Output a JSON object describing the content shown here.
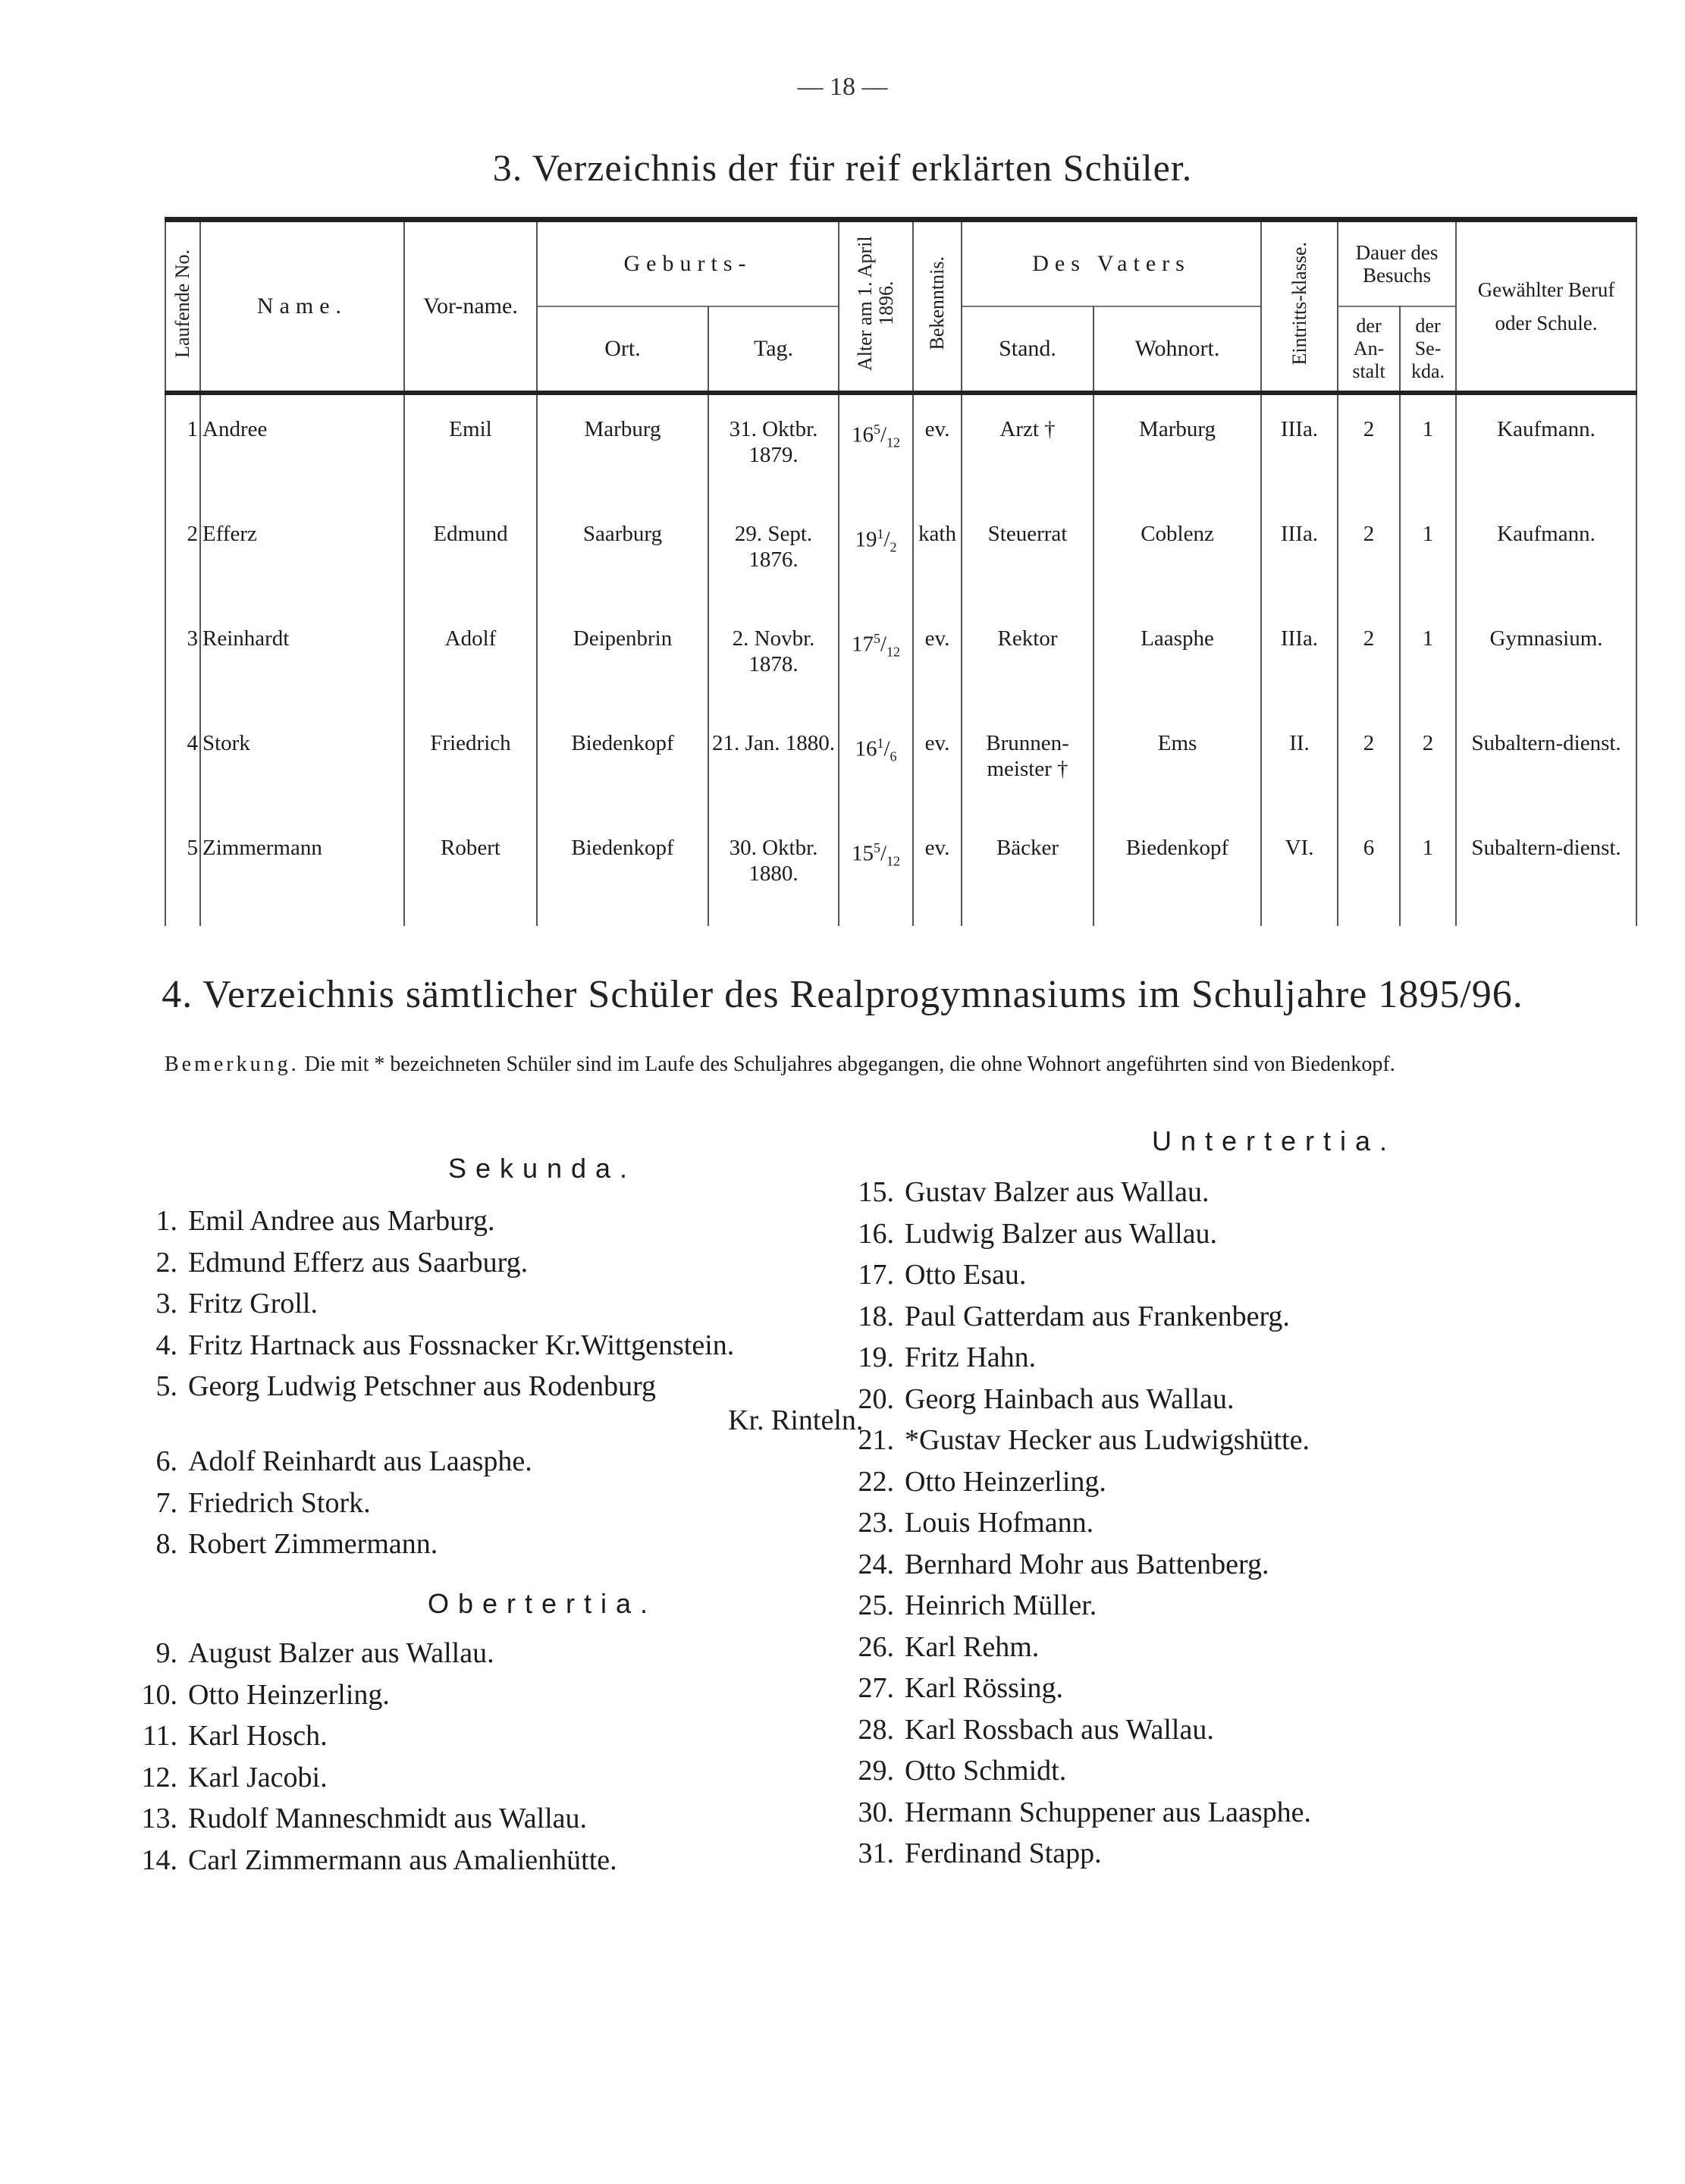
{
  "page_number": "— 18 —",
  "section3": {
    "title": "3. Verzeichnis der für reif erklärten Schüler.",
    "headers": {
      "laufende_no": "Laufende No.",
      "name": "Name.",
      "vorname": "Vor-name.",
      "geburts": "Geburts-",
      "ort": "Ort.",
      "tag": "Tag.",
      "alter": "Alter am 1. April 1896.",
      "bekenntnis": "Bekenntnis.",
      "des_vaters": "Des Vaters",
      "stand": "Stand.",
      "wohnort": "Wohnort.",
      "eintrittsklasse": "Eintritts-klasse.",
      "dauer": "Dauer des Besuchs",
      "der_anstalt": "der An-stalt",
      "der_sekunda": "der Se-kda.",
      "beruf": "Gewählter Beruf oder Schule."
    },
    "rows": [
      {
        "no": "1",
        "name": "Andree",
        "vorname": "Emil",
        "ort": "Marburg",
        "tag": "31. Oktbr. 1879.",
        "alter_whole": "16",
        "alter_num": "5",
        "alter_den": "12",
        "bek": "ev.",
        "stand": "Arzt †",
        "wohnort": "Marburg",
        "klasse": "IIIa.",
        "anstalt": "2",
        "sekunda": "1",
        "beruf": "Kaufmann."
      },
      {
        "no": "2",
        "name": "Efferz",
        "vorname": "Edmund",
        "ort": "Saarburg",
        "tag": "29. Sept. 1876.",
        "alter_whole": "19",
        "alter_num": "1",
        "alter_den": "2",
        "bek": "kath",
        "stand": "Steuerrat",
        "wohnort": "Coblenz",
        "klasse": "IIIa.",
        "anstalt": "2",
        "sekunda": "1",
        "beruf": "Kaufmann."
      },
      {
        "no": "3",
        "name": "Reinhardt",
        "vorname": "Adolf",
        "ort": "Deipenbrin",
        "tag": "2. Novbr. 1878.",
        "alter_whole": "17",
        "alter_num": "5",
        "alter_den": "12",
        "bek": "ev.",
        "stand": "Rektor",
        "wohnort": "Laasphe",
        "klasse": "IIIa.",
        "anstalt": "2",
        "sekunda": "1",
        "beruf": "Gymnasium."
      },
      {
        "no": "4",
        "name": "Stork",
        "vorname": "Friedrich",
        "ort": "Biedenkopf",
        "tag": "21. Jan. 1880.",
        "alter_whole": "16",
        "alter_num": "1",
        "alter_den": "6",
        "bek": "ev.",
        "stand": "Brunnen-meister †",
        "wohnort": "Ems",
        "klasse": "II.",
        "anstalt": "2",
        "sekunda": "2",
        "beruf": "Subaltern-dienst."
      },
      {
        "no": "5",
        "name": "Zimmermann",
        "vorname": "Robert",
        "ort": "Biedenkopf",
        "tag": "30. Oktbr. 1880.",
        "alter_whole": "15",
        "alter_num": "5",
        "alter_den": "12",
        "bek": "ev.",
        "stand": "Bäcker",
        "wohnort": "Biedenkopf",
        "klasse": "VI.",
        "anstalt": "6",
        "sekunda": "1",
        "beruf": "Subaltern-dienst."
      }
    ]
  },
  "section4": {
    "title": "4. Verzeichnis sämtlicher Schüler des Realprogymnasiums im Schuljahre 1895/96.",
    "bemerkung_lead": "Bemerkung.",
    "bemerkung_text": "Die mit * bezeichneten Schüler sind im Laufe des Schuljahres abgegangen, die ohne Wohnort angeführten sind von Biedenkopf.",
    "sekunda": {
      "heading": "Sekunda.",
      "items": [
        {
          "n": "1.",
          "text": "Emil Andree aus Marburg."
        },
        {
          "n": "2.",
          "text": "Edmund Efferz aus Saarburg."
        },
        {
          "n": "3.",
          "text": "Fritz Groll."
        },
        {
          "n": "4.",
          "text": "Fritz Hartnack aus Fossnacker Kr.Wittgenstein."
        },
        {
          "n": "5.",
          "text": "Georg Ludwig Petschner aus Rodenburg",
          "cont": "Kr. Rinteln."
        },
        {
          "n": "6.",
          "text": "Adolf Reinhardt aus Laasphe."
        },
        {
          "n": "7.",
          "text": "Friedrich Stork."
        },
        {
          "n": "8.",
          "text": "Robert Zimmermann."
        }
      ]
    },
    "obertertia": {
      "heading": "Obertertia.",
      "items": [
        {
          "n": "9.",
          "text": "August Balzer aus Wallau."
        },
        {
          "n": "10.",
          "text": "Otto Heinzerling."
        },
        {
          "n": "11.",
          "text": "Karl Hosch."
        },
        {
          "n": "12.",
          "text": "Karl Jacobi."
        },
        {
          "n": "13.",
          "text": "Rudolf Manneschmidt aus Wallau."
        },
        {
          "n": "14.",
          "text": "Carl Zimmermann aus Amalienhütte."
        }
      ]
    },
    "untertertia": {
      "heading": "Untertertia.",
      "items": [
        {
          "n": "15.",
          "text": "Gustav Balzer aus Wallau."
        },
        {
          "n": "16.",
          "text": "Ludwig Balzer aus Wallau."
        },
        {
          "n": "17.",
          "text": "Otto Esau."
        },
        {
          "n": "18.",
          "text": "Paul Gatterdam aus Frankenberg."
        },
        {
          "n": "19.",
          "text": "Fritz Hahn."
        },
        {
          "n": "20.",
          "text": "Georg Hainbach aus Wallau."
        },
        {
          "n": "21.",
          "text": "*Gustav Hecker aus Ludwigshütte."
        },
        {
          "n": "22.",
          "text": "Otto Heinzerling."
        },
        {
          "n": "23.",
          "text": "Louis Hofmann."
        },
        {
          "n": "24.",
          "text": "Bernhard Mohr aus Battenberg."
        },
        {
          "n": "25.",
          "text": "Heinrich Müller."
        },
        {
          "n": "26.",
          "text": "Karl Rehm."
        },
        {
          "n": "27.",
          "text": "Karl Rössing."
        },
        {
          "n": "28.",
          "text": "Karl Rossbach aus Wallau."
        },
        {
          "n": "29.",
          "text": "Otto Schmidt."
        },
        {
          "n": "30.",
          "text": "Hermann Schuppener aus Laasphe."
        },
        {
          "n": "31.",
          "text": "Ferdinand Stapp."
        }
      ]
    }
  }
}
